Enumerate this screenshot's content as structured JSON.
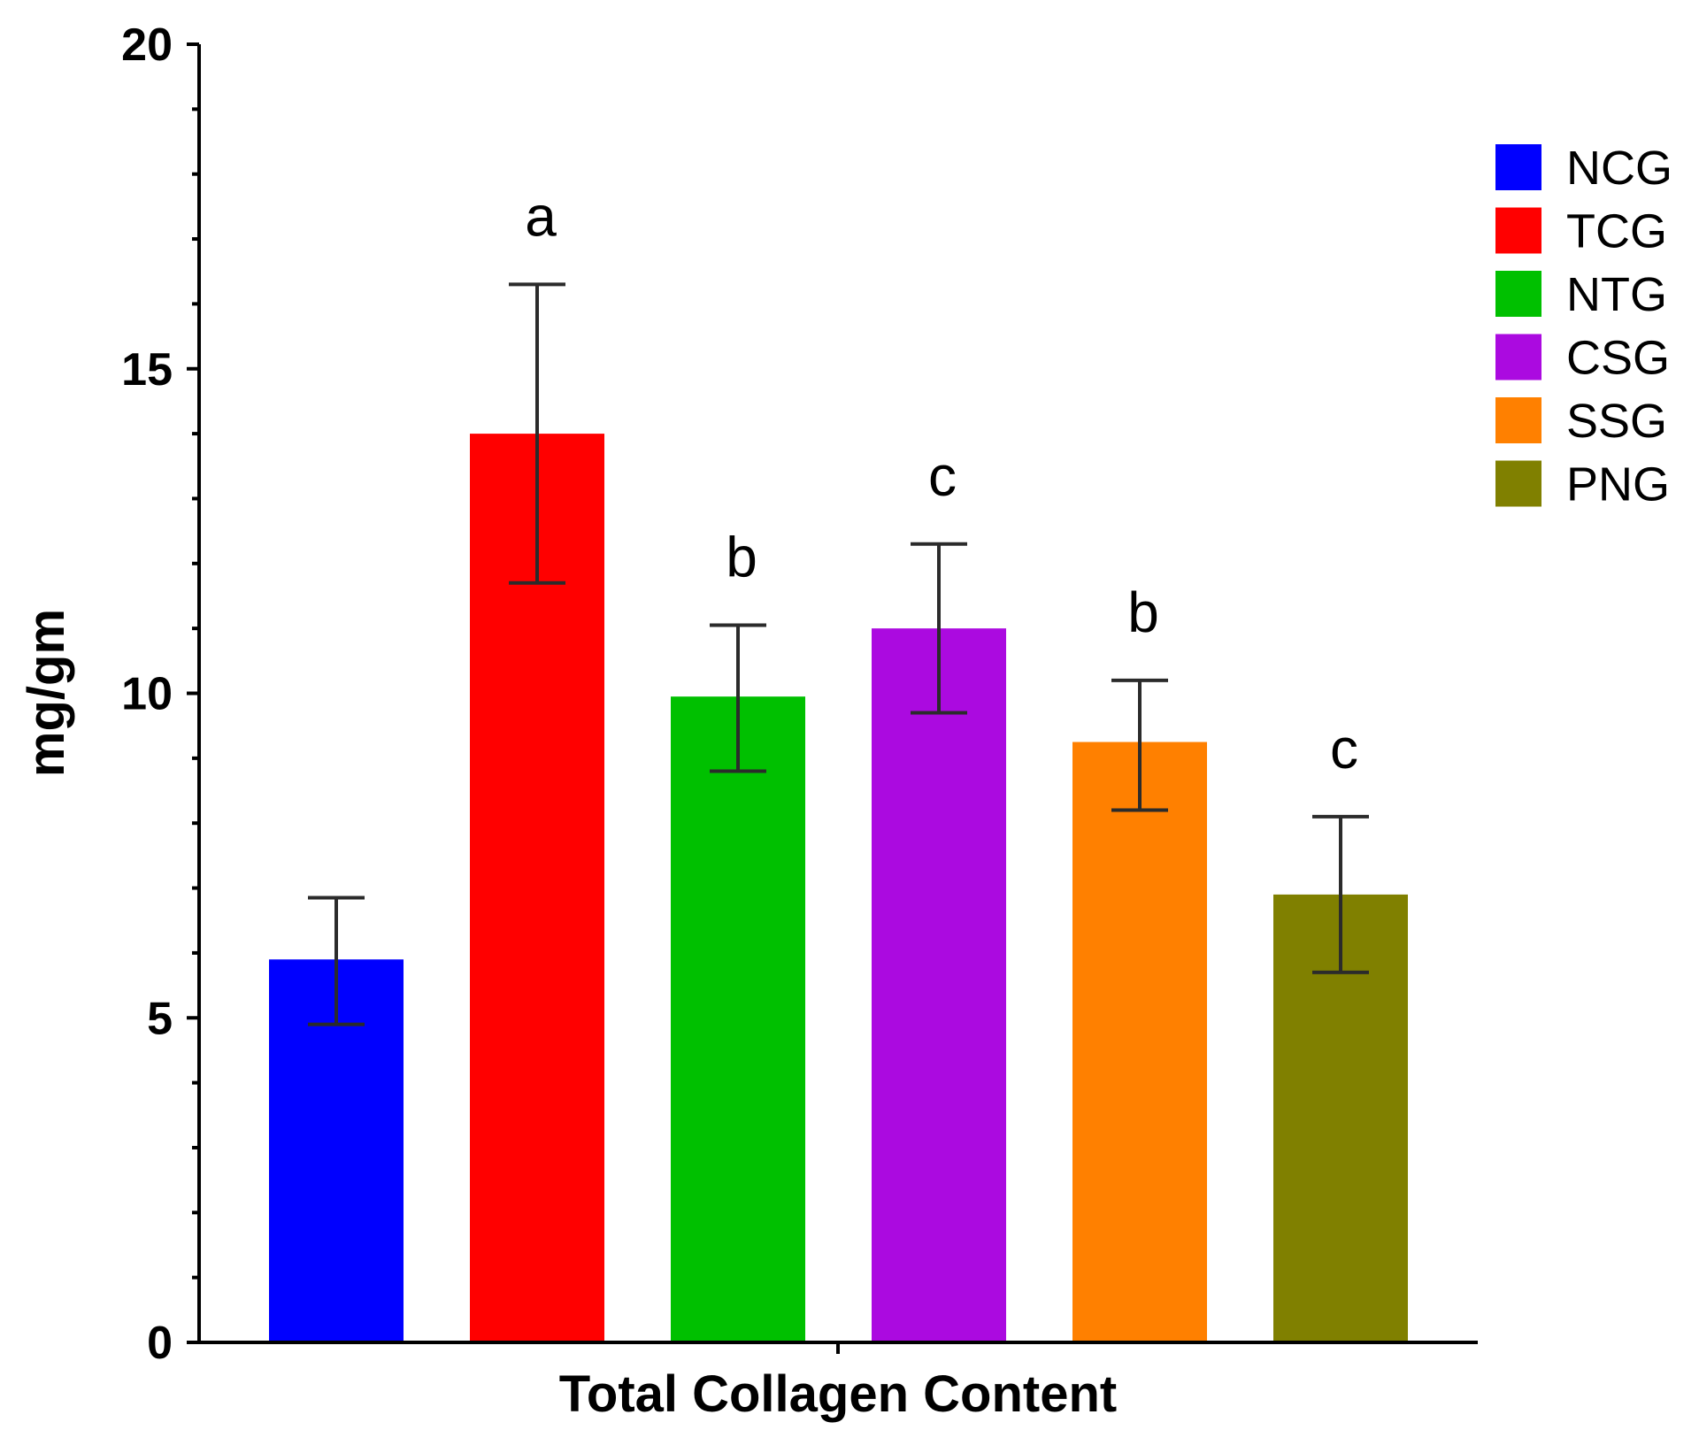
{
  "chart_data": {
    "type": "bar",
    "title": "",
    "xlabel": "Total Collagen Content",
    "ylabel": "mg/gm",
    "ylim": [
      0,
      20
    ],
    "yticks": [
      0,
      5,
      10,
      15,
      20
    ],
    "ytick_labels": [
      "0",
      "5",
      "10",
      "15",
      "20"
    ],
    "minor_tick_step": 1,
    "grid": false,
    "legend_position": "right",
    "categories": [
      "NCG",
      "TCG",
      "NTG",
      "CSG",
      "SSG",
      "PNG"
    ],
    "values": [
      5.9,
      14.0,
      9.95,
      11.0,
      9.25,
      6.9
    ],
    "error_low": [
      4.9,
      11.7,
      8.8,
      9.7,
      8.2,
      5.7
    ],
    "error_high": [
      6.85,
      16.3,
      11.05,
      12.3,
      10.2,
      8.1
    ],
    "significance_labels": [
      "",
      "a",
      "b",
      "c",
      "b",
      "c"
    ],
    "colors": [
      "#0000ff",
      "#ff0000",
      "#00c000",
      "#ab0ae0",
      "#ff8000",
      "#808000"
    ]
  }
}
